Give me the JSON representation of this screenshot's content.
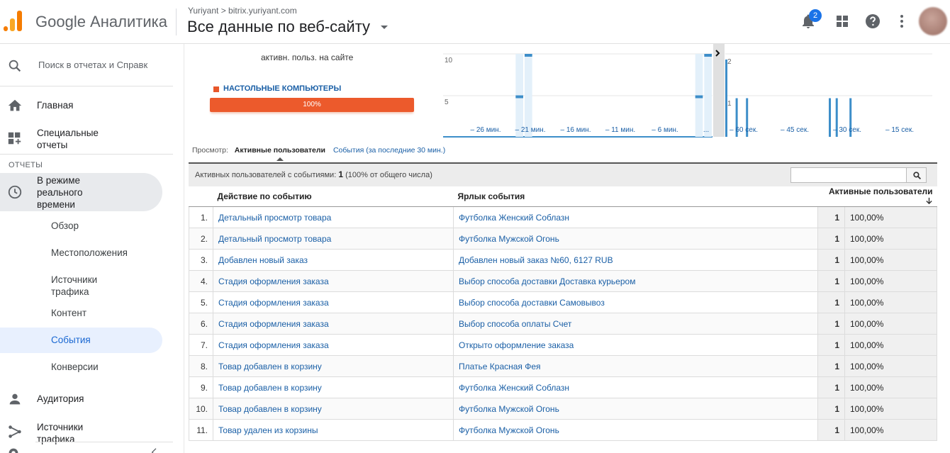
{
  "header": {
    "brand": "Google Аналитика",
    "breadcrumb": "Yuriyant > bitrix.yuriyant.com",
    "property_title": "Все данные по веб-сайту",
    "notification_count": "2"
  },
  "sidebar": {
    "search_placeholder": "Поиск в отчетах и Справк",
    "home": "Главная",
    "custom_reports": "Специальные отчеты",
    "section_label": "ОТЧЕТЫ",
    "realtime": "В режиме реального времени",
    "sub_items": [
      "Обзор",
      "Местоположения",
      "Источники трафика",
      "Контент",
      "События",
      "Конверсии"
    ],
    "audience": "Аудитория",
    "acquisition": "Источники трафика"
  },
  "summary_chart": {
    "title": "активн. польз. на сайте",
    "device_label": "НАСТОЛЬНЫЕ КОМПЬЮТЕРЫ",
    "device_percent": "100%",
    "device_fraction": 1.0
  },
  "chart_data": [
    {
      "type": "bar",
      "title": "",
      "x_tick_labels": [
        "– 26 мин.",
        "– 21 мин.",
        "– 16 мин.",
        "– 11 мин.",
        "– 6 мин.",
        "..."
      ],
      "y_tick_labels": [
        "10",
        "5"
      ],
      "ylim": [
        0,
        11
      ],
      "series": [
        {
          "values_by_minute_ago": {
            "22": 5,
            "21": 10,
            "2": 5,
            "1": 10
          }
        }
      ]
    },
    {
      "type": "bar",
      "title": "",
      "x_tick_labels": [
        "– 60 сек.",
        "– 45 сек.",
        "– 30 сек.",
        "– 15 сек."
      ],
      "y_tick_labels": [
        "2",
        "1"
      ],
      "ylim": [
        0,
        2.2
      ],
      "series": [
        {
          "values_by_second_ago": {
            "60": 2,
            "57": 1,
            "54": 1,
            "30": 1,
            "28": 1,
            "24": 1
          }
        }
      ]
    }
  ],
  "view_switch": {
    "label": "Просмотр:",
    "active": "Активные пользователи",
    "alternate": "События (за последние 30 мин.)"
  },
  "summary": {
    "text_before": "Активных пользователей с событиями: ",
    "count": "1",
    "percent_text": "(100% от общего числа)"
  },
  "table": {
    "headers": {
      "action": "Действие по событию",
      "label": "Ярлык события",
      "users": "Активные пользователи"
    },
    "rows": [
      {
        "n": "1.",
        "action": "Детальный просмотр товара",
        "label": "Футболка Женский Соблазн",
        "users": "1",
        "pct": "100,00%"
      },
      {
        "n": "2.",
        "action": "Детальный просмотр товара",
        "label": "Футболка Мужской Огонь",
        "users": "1",
        "pct": "100,00%"
      },
      {
        "n": "3.",
        "action": "Добавлен новый заказ",
        "label": "Добавлен новый заказ №60, 6127 RUB",
        "users": "1",
        "pct": "100,00%"
      },
      {
        "n": "4.",
        "action": "Стадия оформления заказа",
        "label": "Выбор способа доставки Доставка курьером",
        "users": "1",
        "pct": "100,00%"
      },
      {
        "n": "5.",
        "action": "Стадия оформления заказа",
        "label": "Выбор способа доставки Самовывоз",
        "users": "1",
        "pct": "100,00%"
      },
      {
        "n": "6.",
        "action": "Стадия оформления заказа",
        "label": "Выбор способа оплаты Счет",
        "users": "1",
        "pct": "100,00%"
      },
      {
        "n": "7.",
        "action": "Стадия оформления заказа",
        "label": "Открыто оформление заказа",
        "users": "1",
        "pct": "100,00%"
      },
      {
        "n": "8.",
        "action": "Товар добавлен в корзину",
        "label": "Платье Красная Фея",
        "users": "1",
        "pct": "100,00%"
      },
      {
        "n": "9.",
        "action": "Товар добавлен в корзину",
        "label": "Футболка Женский Соблазн",
        "users": "1",
        "pct": "100,00%"
      },
      {
        "n": "10.",
        "action": "Товар добавлен в корзину",
        "label": "Футболка Мужской Огонь",
        "users": "1",
        "pct": "100,00%"
      },
      {
        "n": "11.",
        "action": "Товар удален из корзины",
        "label": "Футболка Мужской Огонь",
        "users": "1",
        "pct": "100,00%"
      }
    ]
  },
  "colors": {
    "accent_blue": "#1a73e8",
    "bar_blue": "#3d8ec9",
    "device_orange": "#ec5a2c",
    "link": "#1a5fa6"
  }
}
